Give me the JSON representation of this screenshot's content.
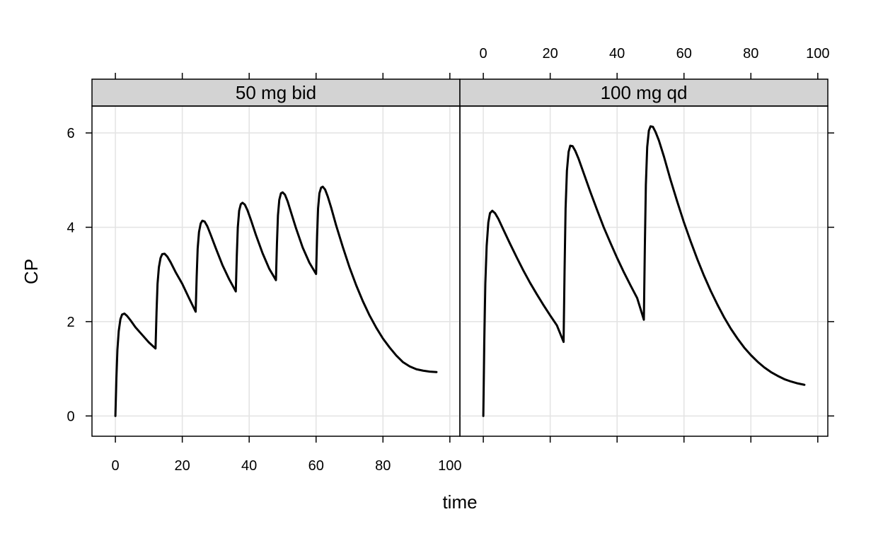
{
  "chart_data": {
    "type": "line",
    "xlabel": "time",
    "ylabel": "CP",
    "xlim": [
      -7,
      103
    ],
    "ylim": [
      -0.43,
      6.57
    ],
    "x_ticks": [
      0,
      20,
      40,
      60,
      80,
      100
    ],
    "y_ticks": [
      0,
      2,
      4,
      6
    ],
    "grid": true,
    "panels": [
      {
        "strip": "50 mg bid",
        "series": [
          {
            "x": [
              0,
              0.3,
              0.6,
              1,
              1.5,
              2,
              2.7,
              3.5,
              4.5,
              6,
              8,
              10,
              12,
              12.3,
              12.6,
              13,
              13.5,
              14,
              14.7,
              15.5,
              16.5,
              18,
              20,
              22,
              24,
              24.3,
              24.6,
              25,
              25.5,
              26,
              26.7,
              27.5,
              28.5,
              30,
              32,
              34,
              36,
              36.3,
              36.6,
              37,
              37.5,
              38,
              38.7,
              39.5,
              40.5,
              42,
              44,
              46,
              48,
              48.3,
              48.6,
              49,
              49.5,
              50,
              50.7,
              51.5,
              52.5,
              54,
              56,
              58,
              60,
              60.3,
              60.6,
              61,
              61.5,
              62,
              62.7,
              63.5,
              64.5,
              66,
              68,
              70,
              72,
              74,
              76,
              78,
              80,
              82,
              84,
              86,
              88,
              90,
              92,
              94,
              96
            ],
            "y": [
              0,
              0.8,
              1.4,
              1.8,
              2.05,
              2.15,
              2.17,
              2.12,
              2.03,
              1.88,
              1.72,
              1.56,
              1.43,
              2.2,
              2.8,
              3.15,
              3.35,
              3.43,
              3.44,
              3.38,
              3.26,
              3.05,
              2.8,
              2.5,
              2.21,
              2.95,
              3.55,
              3.9,
              4.08,
              4.14,
              4.12,
              4.02,
              3.84,
              3.56,
              3.2,
              2.9,
              2.64,
              3.4,
              4.0,
              4.35,
              4.49,
              4.52,
              4.48,
              4.36,
              4.16,
              3.84,
              3.45,
              3.12,
              2.88,
              3.65,
              4.25,
              4.58,
              4.72,
              4.74,
              4.69,
              4.55,
              4.32,
              3.98,
              3.57,
              3.25,
              3.01,
              3.8,
              4.4,
              4.72,
              4.84,
              4.86,
              4.8,
              4.65,
              4.42,
              4.04,
              3.58,
              3.15,
              2.77,
              2.43,
              2.13,
              1.87,
              1.64,
              1.45,
              1.28,
              1.14,
              1.05,
              0.99,
              0.96,
              0.94,
              0.93
            ]
          }
        ]
      },
      {
        "strip": "100 mg qd",
        "series": [
          {
            "x": [
              0,
              0.3,
              0.6,
              1,
              1.5,
              2,
              2.7,
              3.5,
              4.5,
              6,
              8,
              10,
              12,
              14,
              16,
              18,
              20,
              22,
              24,
              24.3,
              24.6,
              25,
              25.5,
              26,
              26.7,
              27.5,
              28.5,
              30,
              32,
              34,
              36,
              38,
              40,
              42,
              44,
              46,
              48,
              48.3,
              48.6,
              49,
              49.5,
              50,
              50.7,
              51.5,
              52.5,
              54,
              56,
              58,
              60,
              62,
              64,
              66,
              68,
              70,
              72,
              74,
              76,
              78,
              80,
              82,
              84,
              86,
              88,
              90,
              92,
              94,
              96
            ],
            "y": [
              0,
              1.6,
              2.8,
              3.6,
              4.1,
              4.3,
              4.35,
              4.3,
              4.18,
              3.95,
              3.65,
              3.36,
              3.08,
              2.82,
              2.58,
              2.35,
              2.13,
              1.92,
              1.57,
              3.1,
              4.4,
              5.2,
              5.6,
              5.73,
              5.72,
              5.62,
              5.45,
              5.15,
              4.75,
              4.37,
              4.0,
              3.67,
              3.35,
              3.05,
              2.77,
              2.5,
              2.04,
              3.6,
              4.9,
              5.7,
              6.05,
              6.14,
              6.13,
              6.02,
              5.84,
              5.5,
              5.0,
              4.54,
              4.1,
              3.7,
              3.32,
              2.97,
              2.65,
              2.36,
              2.09,
              1.85,
              1.64,
              1.45,
              1.29,
              1.15,
              1.03,
              0.93,
              0.85,
              0.78,
              0.73,
              0.69,
              0.66
            ]
          }
        ]
      }
    ]
  }
}
